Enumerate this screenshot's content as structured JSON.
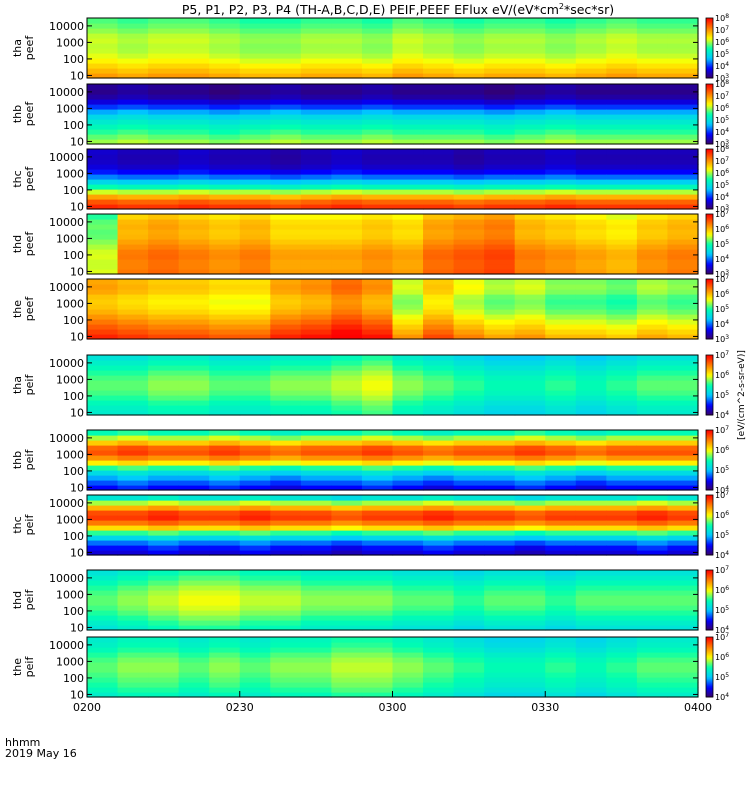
{
  "chart_data": {
    "type": "heatmap",
    "title": "P5, P1, P2, P3, P4 (TH-A,B,C,D,E) PEIF,PEEF EFlux eV/(eV*cm",
    "title_sup": "2",
    "title_end": "*sec*sr)",
    "x_ticks": [
      "0200",
      "0230",
      "0300",
      "0330",
      "0400"
    ],
    "x_label_line1": "hhmm",
    "x_label_line2": "2019 May 16",
    "y_ticks": [
      "10",
      "100",
      "1000",
      "10000"
    ],
    "y_scale": "log",
    "ylim": [
      7,
      30000
    ],
    "colorbar_unit_text": "[eV/(cm^2-s-sr-eV)]",
    "colorbar_ranges": [
      [
        3,
        8
      ],
      [
        3,
        8
      ],
      [
        3,
        8
      ],
      [
        3,
        7
      ],
      [
        3,
        7
      ],
      [
        4,
        7
      ],
      [
        4,
        7
      ],
      [
        4,
        7
      ],
      [
        4,
        7
      ],
      [
        4,
        7
      ]
    ],
    "colormap": [
      "#3a0060",
      "#0000ff",
      "#00c8ff",
      "#00ffb0",
      "#ffff00",
      "#ff7f00",
      "#ff0000"
    ],
    "panels": [
      {
        "label_top": "tha",
        "label_bottom": "peef",
        "base_profile": [
          7.0,
          6.6,
          6.2,
          6.0,
          6.1,
          5.8,
          5.6
        ],
        "time_mod": [
          0.1,
          0.0,
          0.1,
          0.1,
          0.0,
          -0.1,
          -0.1,
          0.0,
          0.0,
          -0.1,
          0.1,
          0.0,
          -0.1,
          0.0,
          0.0,
          -0.1,
          0.0,
          0.1,
          0.0,
          0.0
        ]
      },
      {
        "label_top": "thb",
        "label_bottom": "peef",
        "base_profile": [
          6.1,
          5.7,
          5.3,
          4.8,
          3.8,
          3.2,
          3.3
        ],
        "time_mod": [
          0.0,
          0.1,
          0.0,
          0.0,
          -0.1,
          0.0,
          0.1,
          0.0,
          0.0,
          0.1,
          0.0,
          0.0,
          0.0,
          -0.1,
          0.0,
          0.1,
          0.0,
          0.0,
          0.0,
          0.0
        ]
      },
      {
        "label_top": "thc",
        "label_bottom": "peef",
        "base_profile": [
          7.8,
          7.2,
          5.7,
          4.5,
          3.6,
          3.4,
          3.5
        ],
        "time_mod": [
          0.1,
          0.0,
          0.0,
          0.1,
          0.0,
          0.0,
          -0.1,
          0.0,
          0.1,
          0.0,
          0.0,
          0.0,
          -0.1,
          0.0,
          0.0,
          0.1,
          0.0,
          0.0,
          0.0,
          0.0
        ]
      },
      {
        "label_top": "thd",
        "label_bottom": "peef",
        "base_profile": [
          6.2,
          6.1,
          6.2,
          6.0,
          5.8,
          5.9,
          5.6
        ],
        "time_mod": [
          -0.6,
          0.2,
          0.3,
          0.2,
          0.1,
          0.2,
          0.0,
          0.0,
          0.0,
          0.1,
          0.0,
          0.3,
          0.4,
          0.5,
          0.2,
          0.1,
          0.0,
          -0.1,
          0.1,
          0.2
        ]
      },
      {
        "label_top": "the",
        "label_bottom": "peef",
        "base_profile": [
          6.6,
          6.3,
          6.0,
          5.7,
          5.6,
          5.9,
          5.8
        ],
        "time_mod": [
          0.3,
          0.2,
          0.1,
          0.1,
          0.0,
          0.0,
          0.3,
          0.4,
          0.6,
          0.4,
          -0.3,
          0.1,
          -0.2,
          -0.4,
          -0.3,
          -0.5,
          -0.5,
          -0.6,
          -0.4,
          -0.5
        ]
      },
      {
        "label_top": "tha",
        "label_bottom": "peif",
        "base_profile": [
          5.3,
          5.4,
          5.6,
          5.7,
          5.6,
          5.4,
          5.2
        ],
        "time_mod": [
          0.0,
          0.0,
          0.1,
          0.1,
          0.0,
          0.0,
          0.1,
          0.1,
          0.2,
          0.3,
          0.1,
          0.0,
          -0.1,
          -0.2,
          -0.2,
          -0.1,
          -0.2,
          -0.1,
          0.0,
          0.0
        ]
      },
      {
        "label_top": "thb",
        "label_bottom": "peif",
        "base_profile": [
          4.4,
          4.8,
          5.3,
          6.3,
          6.8,
          6.0,
          5.3
        ],
        "time_mod": [
          0.0,
          0.1,
          0.0,
          0.0,
          0.1,
          0.0,
          -0.1,
          0.0,
          0.0,
          0.1,
          0.0,
          -0.1,
          0.0,
          0.0,
          0.1,
          0.0,
          -0.1,
          0.0,
          0.0,
          0.0
        ]
      },
      {
        "label_top": "thc",
        "label_bottom": "peif",
        "base_profile": [
          4.3,
          4.6,
          5.3,
          6.4,
          6.9,
          6.1,
          5.0
        ],
        "time_mod": [
          0.0,
          0.0,
          0.1,
          0.0,
          0.0,
          0.1,
          0.0,
          0.0,
          -0.1,
          0.0,
          0.0,
          0.1,
          0.0,
          0.0,
          -0.1,
          0.0,
          0.0,
          0.0,
          0.1,
          0.0
        ]
      },
      {
        "label_top": "thd",
        "label_bottom": "peif",
        "base_profile": [
          5.2,
          5.4,
          5.6,
          5.7,
          5.6,
          5.4,
          5.2
        ],
        "time_mod": [
          0.0,
          0.1,
          0.2,
          0.3,
          0.3,
          0.2,
          0.2,
          0.1,
          0.1,
          0.1,
          0.0,
          0.0,
          -0.1,
          0.0,
          0.0,
          -0.1,
          0.0,
          0.0,
          0.0,
          0.0
        ]
      },
      {
        "label_top": "the",
        "label_bottom": "peif",
        "base_profile": [
          5.3,
          5.5,
          5.6,
          5.7,
          5.6,
          5.4,
          5.3
        ],
        "time_mod": [
          0.0,
          0.1,
          0.1,
          0.0,
          0.1,
          0.0,
          0.1,
          0.1,
          0.2,
          0.2,
          0.1,
          0.0,
          -0.1,
          -0.2,
          -0.2,
          -0.1,
          -0.2,
          -0.1,
          0.0,
          0.0
        ]
      }
    ]
  }
}
